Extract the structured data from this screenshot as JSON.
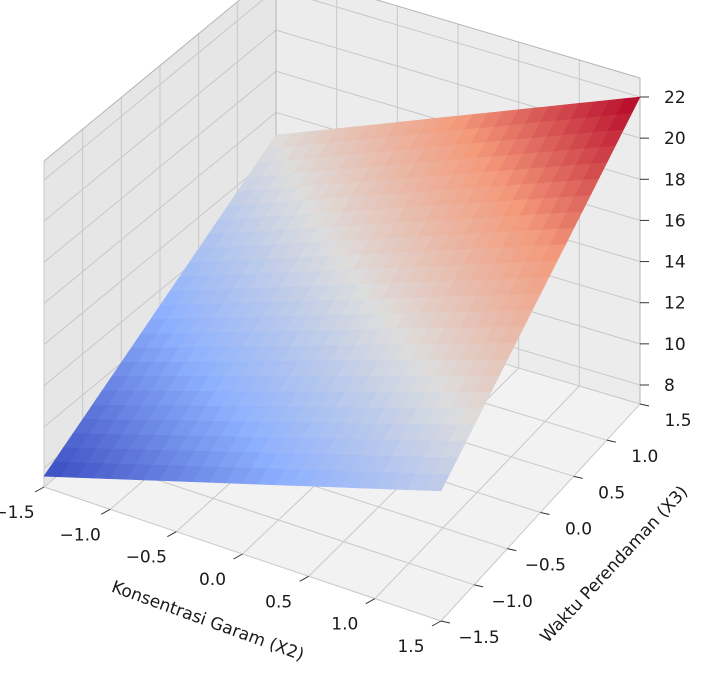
{
  "chart_data": {
    "type": "surface3d",
    "title": "",
    "colormap": "coolwarm",
    "colormap_stops": [
      "#3b4cc0",
      "#8db0fe",
      "#dddddd",
      "#f49a7b",
      "#b40426"
    ],
    "xlabel": "Konsentrasi Garam (X2)",
    "ylabel": "Waktu Perendaman (X3)",
    "zlabel": "",
    "xlim": [
      -1.5,
      1.5
    ],
    "ylim": [
      -1.5,
      1.5
    ],
    "zlim": [
      8,
      22
    ],
    "xticks": [
      {
        "value": -1.5,
        "label": "−1.5"
      },
      {
        "value": -1.0,
        "label": "−1.0"
      },
      {
        "value": -0.5,
        "label": "−0.5"
      },
      {
        "value": 0.0,
        "label": "0.0"
      },
      {
        "value": 0.5,
        "label": "0.5"
      },
      {
        "value": 1.0,
        "label": "1.0"
      },
      {
        "value": 1.5,
        "label": "1.5"
      }
    ],
    "yticks": [
      {
        "value": -1.5,
        "label": "−1.5"
      },
      {
        "value": -1.0,
        "label": "−1.0"
      },
      {
        "value": -0.5,
        "label": "−0.5"
      },
      {
        "value": 0.0,
        "label": "0.0"
      },
      {
        "value": 0.5,
        "label": "0.5"
      },
      {
        "value": 1.0,
        "label": "1.0"
      },
      {
        "value": 1.5,
        "label": "1.5"
      }
    ],
    "zticks": [
      {
        "value": 8,
        "label": "8"
      },
      {
        "value": 10,
        "label": "10"
      },
      {
        "value": 12,
        "label": "12"
      },
      {
        "value": 14,
        "label": "14"
      },
      {
        "value": 16,
        "label": "16"
      },
      {
        "value": 18,
        "label": "18"
      },
      {
        "value": 20,
        "label": "20"
      },
      {
        "value": 22,
        "label": "22"
      }
    ],
    "surface": {
      "x": [
        -1.5,
        1.5
      ],
      "y": [
        -1.5,
        1.5
      ],
      "z": [
        [
          7.6,
          13.4
        ],
        [
          14.9,
          22.0
        ]
      ]
    },
    "grid": true
  }
}
